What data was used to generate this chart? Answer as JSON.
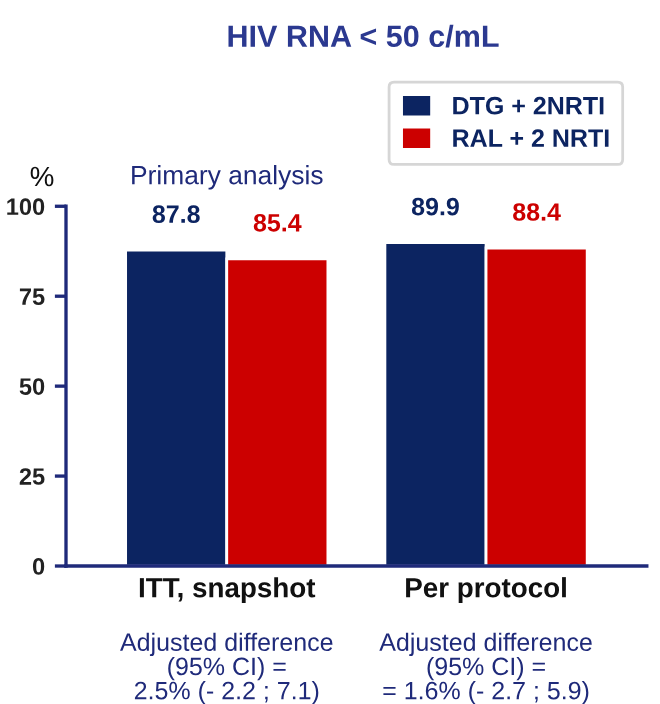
{
  "chart_data": {
    "type": "bar",
    "title": "HIV RNA < 50 c/mL",
    "ylabel": "%",
    "categories": [
      "ITT, snapshot",
      "Per protocol"
    ],
    "series": [
      {
        "name": "DTG + 2NRTI",
        "color": "#0c2461",
        "values": [
          87.8,
          89.9
        ]
      },
      {
        "name": "RAL + 2 NRTI",
        "color": "#cc0000",
        "values": [
          85.4,
          88.4
        ]
      }
    ],
    "ylim": [
      0,
      100
    ],
    "yticks": [
      0,
      25,
      50,
      75,
      100
    ],
    "grid": false,
    "legend": "top right",
    "data_labels": true,
    "annotations": [
      "Primary analysis",
      "Adjusted difference\n(95% CI) =\n2.5% (- 2.2 ; 7.1)",
      "Adjusted difference\n(95% CI) =\n= 1.6% (- 2.7 ; 5.9)"
    ]
  }
}
